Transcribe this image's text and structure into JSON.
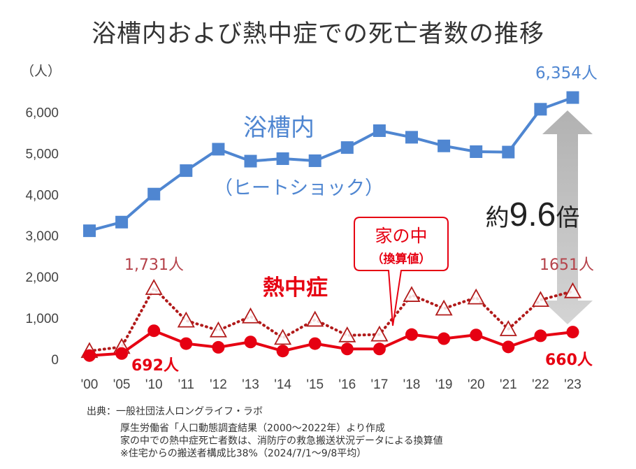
{
  "chart_data": {
    "type": "line",
    "title": "浴槽内および熱中症での死亡者数の推移",
    "ylabel": "（人）",
    "categories": [
      "'00",
      "'05",
      "'10",
      "'11",
      "'12",
      "'13",
      "'14",
      "'15",
      "'16",
      "'17",
      "'18",
      "'19",
      "'20",
      "'21",
      "'22",
      "'23"
    ],
    "yticks": [
      "6,000",
      "5,000",
      "4,000",
      "3,000",
      "2,000",
      "1,000",
      "0"
    ],
    "ylim": [
      0,
      7000
    ],
    "grid": false,
    "series": [
      {
        "key": "bath",
        "color": "#4f86d1",
        "marker": "square",
        "style": "solid",
        "values": [
          3120,
          3330,
          4010,
          4580,
          5100,
          4810,
          4870,
          4820,
          5140,
          5550,
          5390,
          5180,
          5040,
          5030,
          6070,
          6354
        ]
      },
      {
        "key": "home",
        "color": "#b11a1a",
        "marker": "triangle",
        "style": "dotted",
        "values": [
          200,
          300,
          1731,
          940,
          700,
          1040,
          520,
          960,
          580,
          600,
          1560,
          1230,
          1500,
          730,
          1440,
          1651
        ]
      },
      {
        "key": "heat",
        "color": "#e60012",
        "marker": "circle",
        "style": "solid",
        "values": [
          90,
          140,
          692,
          380,
          290,
          420,
          200,
          380,
          250,
          250,
          600,
          500,
          590,
          300,
          570,
          660
        ]
      }
    ],
    "annotations": {
      "bath_label": "浴槽内",
      "bath_sub": "（ヒートショック）",
      "heat_label": "熱中症",
      "home_label_1": "家の中",
      "home_label_2": "（換算値）",
      "ratio_prefix": "約",
      "ratio_value": "9.6",
      "ratio_suffix": "倍",
      "bath_last": "6,354人",
      "home_peak": "1,731人",
      "home_last": "1651人",
      "heat_peak": "692人",
      "heat_last": "660人"
    }
  },
  "source": {
    "line1": "出典：一般社団法人ロングライフ・ラボ",
    "line2": "厚生労働省「人口動態調査結果（2000～2022年）より作成",
    "line3": "家の中での熱中症死亡者数は、消防庁の救急搬送状況データによる換算値",
    "line4": "※住宅からの搬送者構成比38%（2024/7/1～9/8平均）"
  }
}
